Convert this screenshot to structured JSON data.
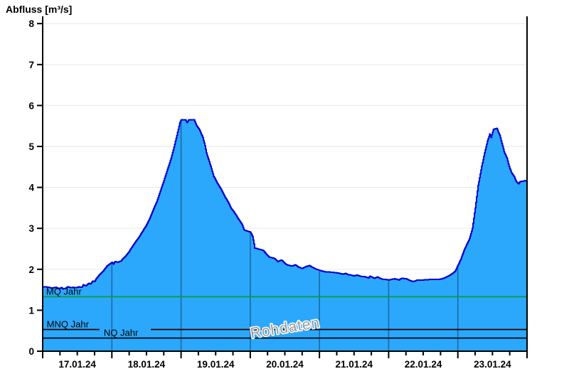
{
  "chart": {
    "title": "Abfluss [m³/s]"
  },
  "chart_data": {
    "type": "area",
    "title": "Abfluss [m³/s]",
    "ylabel": "Abfluss [m³/s]",
    "xlabel": "",
    "ylim": [
      0,
      8
    ],
    "y_ticks": [
      0,
      1,
      2,
      3,
      4,
      5,
      6,
      7,
      8
    ],
    "x_epoch": "17.01.24 00:00",
    "x_range_hours": [
      0,
      168
    ],
    "x_major_tick_every_hours": 24,
    "x_minor_tick_every_hours": 6,
    "x_day_labels": [
      "17.01.24",
      "18.01.24",
      "19.01.24",
      "20.01.24",
      "21.01.24",
      "22.01.24",
      "23.01.24"
    ],
    "grid": {
      "horizontal": true,
      "vertical_day_lines_clipped_to_fill": true,
      "legend": "none"
    },
    "watermark": {
      "text": "Rohdaten",
      "rotation_deg": -9,
      "color": "#9a9a9a"
    },
    "reference_lines": [
      {
        "label": "MQ Jahr",
        "value": 1.33,
        "color": "#089B38",
        "label_x_hours": 1.2,
        "gap_hours": null
      },
      {
        "label": "MNQ Jahr",
        "value": 0.53,
        "color": "#000000",
        "label_x_hours": 1.4,
        "gap_hours": [
          19.7,
          37.5
        ]
      },
      {
        "label": "NQ Jahr",
        "value": 0.32,
        "color": "#000000",
        "label_x_hours": 21.2,
        "gap_hours": null
      }
    ],
    "series": [
      {
        "name": "Abfluss",
        "unit": "m³/s",
        "points": [
          [
            0,
            1.57
          ],
          [
            1,
            1.57
          ],
          [
            2,
            1.56
          ],
          [
            3,
            1.54
          ],
          [
            4.5,
            1.56
          ],
          [
            5.5,
            1.53
          ],
          [
            6.5,
            1.55
          ],
          [
            7,
            1.52
          ],
          [
            8,
            1.54
          ],
          [
            8.6,
            1.58
          ],
          [
            9.5,
            1.55
          ],
          [
            10.5,
            1.56
          ],
          [
            11.5,
            1.55
          ],
          [
            12.5,
            1.57
          ],
          [
            13.5,
            1.56
          ],
          [
            14,
            1.62
          ],
          [
            15,
            1.6
          ],
          [
            16,
            1.66
          ],
          [
            16.6,
            1.64
          ],
          [
            17.3,
            1.72
          ],
          [
            18,
            1.7
          ],
          [
            18.6,
            1.78
          ],
          [
            19.7,
            1.87
          ],
          [
            20.6,
            1.93
          ],
          [
            21.4,
            2.0
          ],
          [
            22.2,
            2.08
          ],
          [
            23,
            2.12
          ],
          [
            24,
            2.17
          ],
          [
            24.5,
            2.13
          ],
          [
            25,
            2.19
          ],
          [
            26,
            2.17
          ],
          [
            27,
            2.2
          ],
          [
            28.4,
            2.3
          ],
          [
            29.6,
            2.4
          ],
          [
            30.8,
            2.53
          ],
          [
            32,
            2.66
          ],
          [
            33.3,
            2.78
          ],
          [
            34.5,
            2.92
          ],
          [
            35.8,
            3.06
          ],
          [
            37,
            3.23
          ],
          [
            38.2,
            3.44
          ],
          [
            39.5,
            3.65
          ],
          [
            40.7,
            3.9
          ],
          [
            42,
            4.17
          ],
          [
            43.2,
            4.43
          ],
          [
            44.4,
            4.69
          ],
          [
            45.6,
            5.01
          ],
          [
            46.9,
            5.39
          ],
          [
            47.6,
            5.6
          ],
          [
            48,
            5.65
          ],
          [
            49.5,
            5.65
          ],
          [
            50,
            5.58
          ],
          [
            50.6,
            5.65
          ],
          [
            52.5,
            5.65
          ],
          [
            53.2,
            5.53
          ],
          [
            54.3,
            5.41
          ],
          [
            55.5,
            5.22
          ],
          [
            56.3,
            5.0
          ],
          [
            56.8,
            4.83
          ],
          [
            58,
            4.57
          ],
          [
            59.2,
            4.28
          ],
          [
            60.5,
            4.11
          ],
          [
            61.7,
            3.97
          ],
          [
            63,
            3.79
          ],
          [
            64.2,
            3.65
          ],
          [
            65.4,
            3.48
          ],
          [
            66.7,
            3.36
          ],
          [
            67.9,
            3.22
          ],
          [
            69.1,
            3.1
          ],
          [
            69.8,
            2.96
          ],
          [
            71,
            2.93
          ],
          [
            72,
            2.91
          ],
          [
            72.8,
            2.8
          ],
          [
            73.5,
            2.52
          ],
          [
            75,
            2.49
          ],
          [
            76.5,
            2.46
          ],
          [
            77.5,
            2.37
          ],
          [
            78.5,
            2.3
          ],
          [
            79.5,
            2.28
          ],
          [
            80.5,
            2.26
          ],
          [
            81.5,
            2.19
          ],
          [
            82.7,
            2.23
          ],
          [
            84,
            2.14
          ],
          [
            85,
            2.1
          ],
          [
            86.4,
            2.08
          ],
          [
            87.6,
            2.11
          ],
          [
            88.8,
            2.05
          ],
          [
            90,
            2.02
          ],
          [
            91.3,
            2.07
          ],
          [
            92.5,
            2.09
          ],
          [
            93.7,
            2.04
          ],
          [
            95,
            2.0
          ],
          [
            96,
            1.97
          ],
          [
            98,
            1.94
          ],
          [
            100,
            1.93
          ],
          [
            102.4,
            1.91
          ],
          [
            104,
            1.88
          ],
          [
            105,
            1.9
          ],
          [
            106,
            1.87
          ],
          [
            108,
            1.84
          ],
          [
            109,
            1.86
          ],
          [
            110,
            1.83
          ],
          [
            111.6,
            1.82
          ],
          [
            113,
            1.79
          ],
          [
            113.5,
            1.83
          ],
          [
            115,
            1.78
          ],
          [
            116,
            1.81
          ],
          [
            117.5,
            1.76
          ],
          [
            119,
            1.75
          ],
          [
            120,
            1.74
          ],
          [
            122,
            1.77
          ],
          [
            123.5,
            1.74
          ],
          [
            124.5,
            1.78
          ],
          [
            126,
            1.77
          ],
          [
            127.5,
            1.72
          ],
          [
            128.5,
            1.7
          ],
          [
            130,
            1.74
          ],
          [
            132,
            1.74
          ],
          [
            134,
            1.75
          ],
          [
            136.6,
            1.75
          ],
          [
            138,
            1.76
          ],
          [
            139.3,
            1.79
          ],
          [
            140.5,
            1.83
          ],
          [
            141.7,
            1.88
          ],
          [
            143,
            1.95
          ],
          [
            144,
            2.1
          ],
          [
            145,
            2.25
          ],
          [
            146,
            2.45
          ],
          [
            147,
            2.6
          ],
          [
            148,
            2.75
          ],
          [
            149,
            3.0
          ],
          [
            150,
            3.5
          ],
          [
            151,
            4.05
          ],
          [
            152.3,
            4.54
          ],
          [
            153.5,
            4.92
          ],
          [
            154.3,
            5.15
          ],
          [
            155,
            5.3
          ],
          [
            155.5,
            5.22
          ],
          [
            156.3,
            5.42
          ],
          [
            157.5,
            5.44
          ],
          [
            158,
            5.35
          ],
          [
            158.5,
            5.27
          ],
          [
            159.3,
            5.06
          ],
          [
            160,
            4.87
          ],
          [
            161,
            4.71
          ],
          [
            161.7,
            4.52
          ],
          [
            162.5,
            4.37
          ],
          [
            163.5,
            4.26
          ],
          [
            164.2,
            4.14
          ],
          [
            165,
            4.09
          ],
          [
            165.5,
            4.14
          ],
          [
            166.5,
            4.15
          ],
          [
            167.5,
            4.17
          ],
          [
            168,
            4.13
          ]
        ]
      }
    ],
    "colors": {
      "fill": "#2BA8FB",
      "curve_stroke": "#0000CD",
      "day_line_over_fill": "#1A6AA6",
      "h_gridline": "#EBEBEB",
      "axis": "#000000",
      "mq_line": "#089B38",
      "watermark": "#9A9A9A"
    }
  }
}
